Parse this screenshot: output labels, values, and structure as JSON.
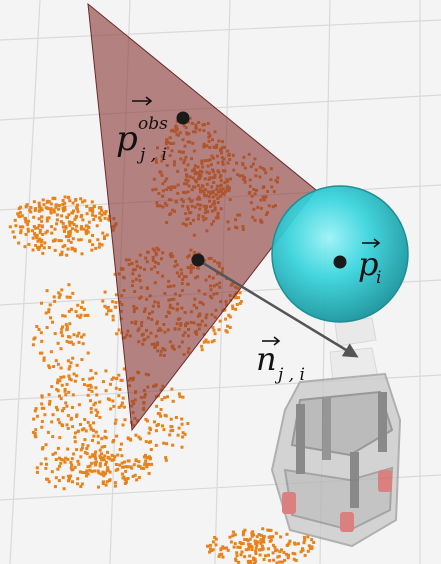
{
  "colors": {
    "background": "#f4f4f4",
    "grid": "#d9d9d9",
    "point_cloud": "#e8821a",
    "plane": "#8c3a3a",
    "sphere": "#2fd3dc",
    "normal_arrow": "#555555",
    "robot": "#8a8a8a"
  },
  "labels": {
    "obstacle_point": {
      "base": "p",
      "superscript": "obs",
      "subscript": "j , i"
    },
    "robot_position": {
      "base": "p",
      "subscript": "i"
    },
    "normal_vector": {
      "base": "n",
      "subscript": "j , i"
    }
  },
  "icons": {
    "obstacle_point": "black-dot",
    "plane_point": "black-dot",
    "robot_point": "black-dot",
    "normal": "arrow"
  }
}
